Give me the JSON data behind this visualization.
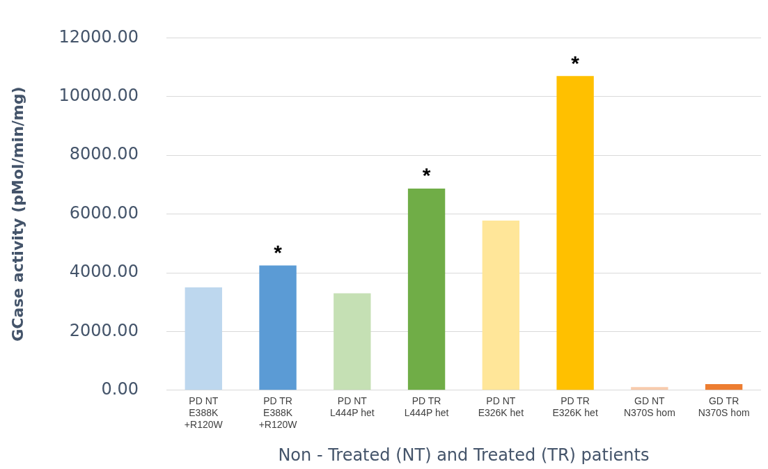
{
  "chart_data": {
    "type": "bar",
    "xlabel": "Non - Treated (NT) and Treated (TR) patients",
    "ylabel": "GCase activity (pMol/min/mg)",
    "categories": [
      "PD NT\nE388K\n+R120W",
      "PD TR\nE388K\n+R120W",
      "PD NT\nL444P het",
      "PD TR\nL444P het",
      "PD NT\nE326K het",
      "PD TR\nE326K het",
      "GD NT\nN370S hom",
      "GD TR\nN370S hom"
    ],
    "values": [
      3500,
      4250,
      3300,
      6870,
      5780,
      10700,
      110,
      210
    ],
    "colors": [
      "#bdd7ee",
      "#5b9bd5",
      "#c5e0b4",
      "#70ad47",
      "#ffe699",
      "#ffc000",
      "#f8cbad",
      "#ed7d31"
    ],
    "ylim": [
      0,
      12000
    ],
    "yticks": [
      {
        "value": 0,
        "label": "0.00"
      },
      {
        "value": 2000,
        "label": "2000.00"
      },
      {
        "value": 4000,
        "label": "4000.00"
      },
      {
        "value": 6000,
        "label": "6000.00"
      },
      {
        "value": 8000,
        "label": "8000.00"
      },
      {
        "value": 10000,
        "label": "10000.00"
      },
      {
        "value": 12000,
        "label": "12000.00"
      }
    ],
    "grid": "y",
    "legend": false,
    "annotations": [
      {
        "text": "*",
        "x": "PD TR\nE388K\n+R120W",
        "y": 4250
      },
      {
        "text": "*",
        "x": "PD TR\nL444P het",
        "y": 6870
      },
      {
        "text": "*",
        "x": "PD TR\nE326K het",
        "y": 10700
      }
    ]
  }
}
